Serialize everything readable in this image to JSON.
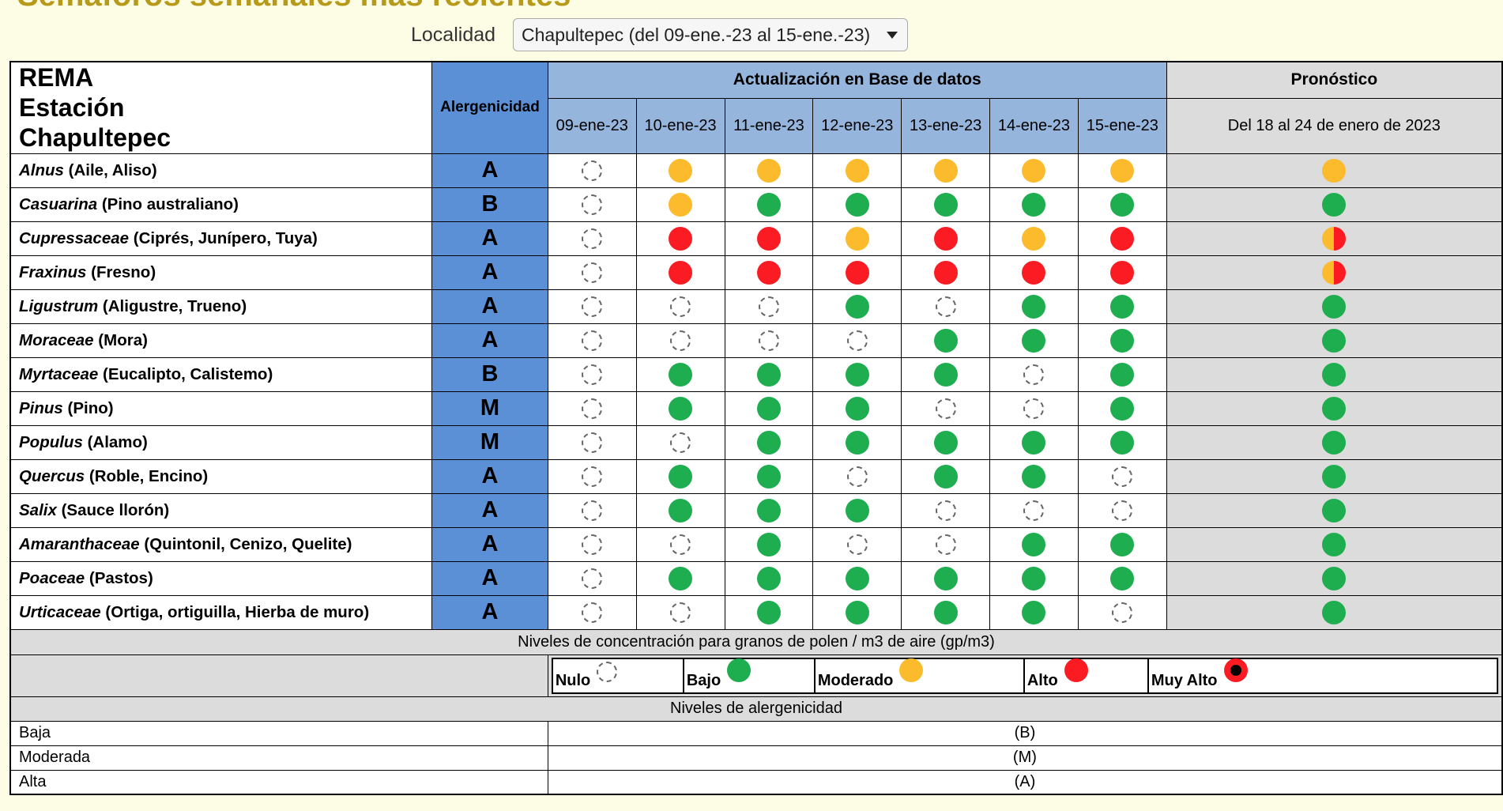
{
  "page": {
    "heading": "Semáforos semanales más recientes"
  },
  "locality": {
    "label": "Localidad",
    "selected": "Chapultepec (del 09-ene.-23 al 15-ene.-23)"
  },
  "table": {
    "station_lines": [
      "REMA",
      "Estación",
      "Chapultepec"
    ],
    "allergenicity_header": "Alergenicidad",
    "update_header": "Actualización en Base de datos",
    "forecast_header": "Pronóstico",
    "dates": [
      "09-ene-23",
      "10-ene-23",
      "11-ene-23",
      "12-ene-23",
      "13-ene-23",
      "14-ene-23",
      "15-ene-23"
    ],
    "forecast_range": "Del 18 al 24 de enero de 2023",
    "rows": [
      {
        "genus": "Alnus",
        "common": "(Aile, Aliso)",
        "allergenicity": "A",
        "levels": [
          "nulo",
          "moderado",
          "moderado",
          "moderado",
          "moderado",
          "moderado",
          "moderado"
        ],
        "forecast": "moderado"
      },
      {
        "genus": "Casuarina",
        "common": "(Pino australiano)",
        "allergenicity": "B",
        "levels": [
          "nulo",
          "moderado",
          "bajo",
          "bajo",
          "bajo",
          "bajo",
          "bajo"
        ],
        "forecast": "bajo"
      },
      {
        "genus": "Cupressaceae",
        "common": "(Ciprés, Junípero, Tuya)",
        "allergenicity": "A",
        "levels": [
          "nulo",
          "alto",
          "alto",
          "moderado",
          "alto",
          "moderado",
          "alto"
        ],
        "forecast": "split"
      },
      {
        "genus": "Fraxinus",
        "common": "(Fresno)",
        "allergenicity": "A",
        "levels": [
          "nulo",
          "alto",
          "alto",
          "alto",
          "alto",
          "alto",
          "alto"
        ],
        "forecast": "split"
      },
      {
        "genus": "Ligustrum",
        "common": "(Aligustre, Trueno)",
        "allergenicity": "A",
        "levels": [
          "nulo",
          "nulo",
          "nulo",
          "bajo",
          "nulo",
          "bajo",
          "bajo"
        ],
        "forecast": "bajo"
      },
      {
        "genus": "Moraceae",
        "common": "(Mora)",
        "allergenicity": "A",
        "levels": [
          "nulo",
          "nulo",
          "nulo",
          "nulo",
          "bajo",
          "bajo",
          "bajo"
        ],
        "forecast": "bajo"
      },
      {
        "genus": "Myrtaceae",
        "common": "(Eucalipto, Calistemo)",
        "allergenicity": "B",
        "levels": [
          "nulo",
          "bajo",
          "bajo",
          "bajo",
          "bajo",
          "nulo",
          "bajo"
        ],
        "forecast": "bajo"
      },
      {
        "genus": "Pinus",
        "common": "(Pino)",
        "allergenicity": "M",
        "levels": [
          "nulo",
          "bajo",
          "bajo",
          "bajo",
          "nulo",
          "nulo",
          "bajo"
        ],
        "forecast": "bajo"
      },
      {
        "genus": "Populus",
        "common": "(Alamo)",
        "allergenicity": "M",
        "levels": [
          "nulo",
          "nulo",
          "bajo",
          "bajo",
          "bajo",
          "bajo",
          "bajo"
        ],
        "forecast": "bajo"
      },
      {
        "genus": "Quercus",
        "common": "(Roble, Encino)",
        "allergenicity": "A",
        "levels": [
          "nulo",
          "bajo",
          "bajo",
          "nulo",
          "bajo",
          "bajo",
          "nulo"
        ],
        "forecast": "bajo"
      },
      {
        "genus": "Salix",
        "common": "(Sauce llorón)",
        "allergenicity": "A",
        "levels": [
          "nulo",
          "bajo",
          "bajo",
          "bajo",
          "nulo",
          "nulo",
          "nulo"
        ],
        "forecast": "bajo"
      },
      {
        "genus": "Amaranthaceae",
        "common": "(Quintonil, Cenizo, Quelite)",
        "allergenicity": "A",
        "levels": [
          "nulo",
          "nulo",
          "bajo",
          "nulo",
          "nulo",
          "bajo",
          "bajo"
        ],
        "forecast": "bajo"
      },
      {
        "genus": "Poaceae",
        "common": "(Pastos)",
        "allergenicity": "A",
        "levels": [
          "nulo",
          "bajo",
          "bajo",
          "bajo",
          "bajo",
          "bajo",
          "bajo"
        ],
        "forecast": "bajo"
      },
      {
        "genus": "Urticaceae",
        "common": "(Ortiga, ortiguilla, Hierba de muro)",
        "allergenicity": "A",
        "levels": [
          "nulo",
          "nulo",
          "bajo",
          "bajo",
          "bajo",
          "bajo",
          "nulo"
        ],
        "forecast": "bajo"
      }
    ]
  },
  "legend": {
    "concentration_title": "Niveles de concentración para granos de polen / m3 de aire (gp/m3)",
    "items": [
      {
        "label": "Nulo",
        "level": "nulo"
      },
      {
        "label": "Bajo",
        "level": "bajo"
      },
      {
        "label": "Moderado",
        "level": "moderado"
      },
      {
        "label": "Alto",
        "level": "alto"
      },
      {
        "label": "Muy Alto",
        "level": "muyalto"
      }
    ],
    "allergenicity_title": "Niveles de alergenicidad",
    "allergenicity_levels": [
      {
        "name": "Baja",
        "code": "(B)"
      },
      {
        "name": "Moderada",
        "code": "(M)"
      },
      {
        "name": "Alta",
        "code": "(A)"
      }
    ]
  },
  "colors": {
    "bajo": "#1ead4f",
    "moderado": "#fcbb2c",
    "alto": "#fb1c23",
    "header_blue": "#5b8fd6",
    "date_blue": "#95b5dc",
    "grey": "#dcdcdc",
    "page_bg": "#fdfde6"
  }
}
